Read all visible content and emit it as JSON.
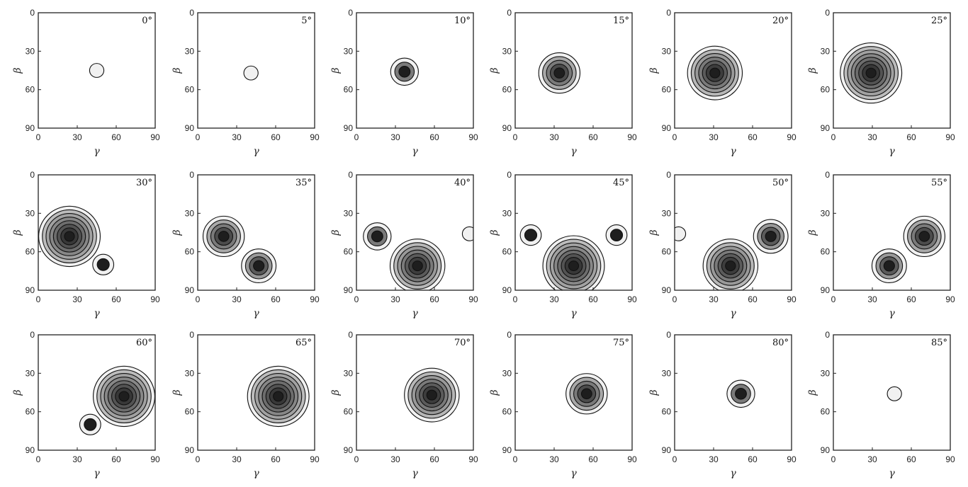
{
  "chart_data": {
    "type": "contour",
    "panel_count": 18,
    "layout": {
      "rows": 3,
      "cols": 6
    },
    "xlabel": "γ",
    "ylabel": "β",
    "xlim": [
      0,
      90
    ],
    "ylim": [
      90,
      0
    ],
    "xticks": [
      "0",
      "30",
      "60",
      "90"
    ],
    "yticks": [
      "0",
      "30",
      "60",
      "90"
    ],
    "colors": {
      "frame": "#222222",
      "contour_line": "#111111",
      "fill_low": "#f1f1f1",
      "fill_high": "#1e1e1e"
    },
    "panels": [
      {
        "label": "0°",
        "peaks": [
          {
            "gamma": 45,
            "beta": 45,
            "levels": 1
          }
        ]
      },
      {
        "label": "5°",
        "peaks": [
          {
            "gamma": 41,
            "beta": 47,
            "levels": 1
          }
        ]
      },
      {
        "label": "10°",
        "peaks": [
          {
            "gamma": 37,
            "beta": 46,
            "levels": 3
          }
        ]
      },
      {
        "label": "15°",
        "peaks": [
          {
            "gamma": 34,
            "beta": 47,
            "levels": 5
          }
        ]
      },
      {
        "label": "20°",
        "peaks": [
          {
            "gamma": 31,
            "beta": 47,
            "levels": 7
          }
        ]
      },
      {
        "label": "25°",
        "peaks": [
          {
            "gamma": 29,
            "beta": 47,
            "levels": 8
          }
        ]
      },
      {
        "label": "30°",
        "peaks": [
          {
            "gamma": 24,
            "beta": 48,
            "levels": 8
          },
          {
            "gamma": 50,
            "beta": 70,
            "levels": 2
          }
        ]
      },
      {
        "label": "35°",
        "peaks": [
          {
            "gamma": 20,
            "beta": 48,
            "levels": 5
          },
          {
            "gamma": 47,
            "beta": 71,
            "levels": 4
          }
        ]
      },
      {
        "label": "40°",
        "peaks": [
          {
            "gamma": 16,
            "beta": 48,
            "levels": 3
          },
          {
            "gamma": 47,
            "beta": 71,
            "levels": 7
          },
          {
            "gamma": 87,
            "beta": 46,
            "levels": 1
          }
        ]
      },
      {
        "label": "45°",
        "peaks": [
          {
            "gamma": 12,
            "beta": 47,
            "levels": 2
          },
          {
            "gamma": 45,
            "beta": 71,
            "levels": 8
          },
          {
            "gamma": 78,
            "beta": 47,
            "levels": 2
          }
        ]
      },
      {
        "label": "50°",
        "peaks": [
          {
            "gamma": 3,
            "beta": 46,
            "levels": 1
          },
          {
            "gamma": 43,
            "beta": 71,
            "levels": 7
          },
          {
            "gamma": 74,
            "beta": 48,
            "levels": 4
          }
        ]
      },
      {
        "label": "55°",
        "peaks": [
          {
            "gamma": 43,
            "beta": 71,
            "levels": 4
          },
          {
            "gamma": 70,
            "beta": 48,
            "levels": 5
          }
        ]
      },
      {
        "label": "60°",
        "peaks": [
          {
            "gamma": 40,
            "beta": 70,
            "levels": 2
          },
          {
            "gamma": 66,
            "beta": 48,
            "levels": 8
          }
        ]
      },
      {
        "label": "65°",
        "peaks": [
          {
            "gamma": 62,
            "beta": 48,
            "levels": 8
          }
        ]
      },
      {
        "label": "70°",
        "peaks": [
          {
            "gamma": 58,
            "beta": 47,
            "levels": 7
          }
        ]
      },
      {
        "label": "75°",
        "peaks": [
          {
            "gamma": 55,
            "beta": 46,
            "levels": 5
          }
        ]
      },
      {
        "label": "80°",
        "peaks": [
          {
            "gamma": 51,
            "beta": 46,
            "levels": 3
          }
        ]
      },
      {
        "label": "85°",
        "peaks": [
          {
            "gamma": 47,
            "beta": 46,
            "levels": 1
          }
        ]
      }
    ]
  }
}
